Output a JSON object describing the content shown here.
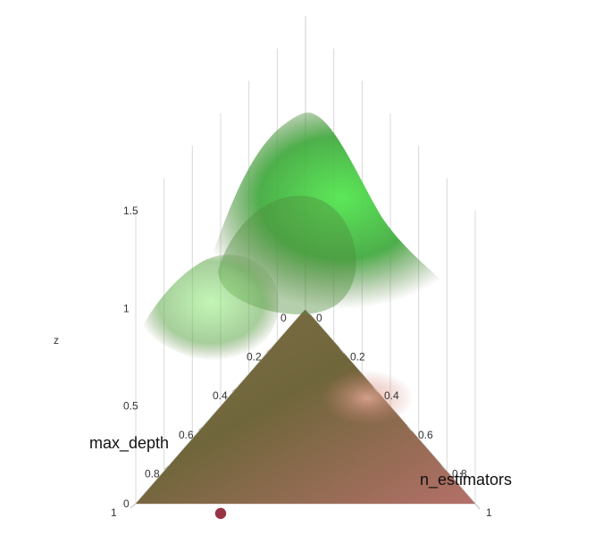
{
  "chart_data": {
    "type": "surface",
    "xlabel": "n_estimators",
    "ylabel": "max_depth",
    "zlabel": "z",
    "x_ticks": [
      "0",
      "0.2",
      "0.4",
      "0.6",
      "0.8",
      "1"
    ],
    "y_ticks": [
      "0",
      "0.2",
      "0.4",
      "0.6",
      "0.8",
      "1"
    ],
    "z_ticks": [
      "0",
      "0.5",
      "1",
      "1.5"
    ],
    "xlim": [
      0,
      1
    ],
    "ylim": [
      0,
      1
    ],
    "zlim": [
      0,
      1.5
    ],
    "peak": {
      "n_estimators": 0,
      "max_depth": 0,
      "z": 1.3
    },
    "highlight_point": {
      "n_estimators": 0.3,
      "max_depth": 0.8,
      "z": 0.05
    },
    "colors": {
      "surface_low": "#b26a5d",
      "surface_mid": "#7a6c3f",
      "surface_high": "#4fd447",
      "point": "#8c1d2e"
    }
  }
}
